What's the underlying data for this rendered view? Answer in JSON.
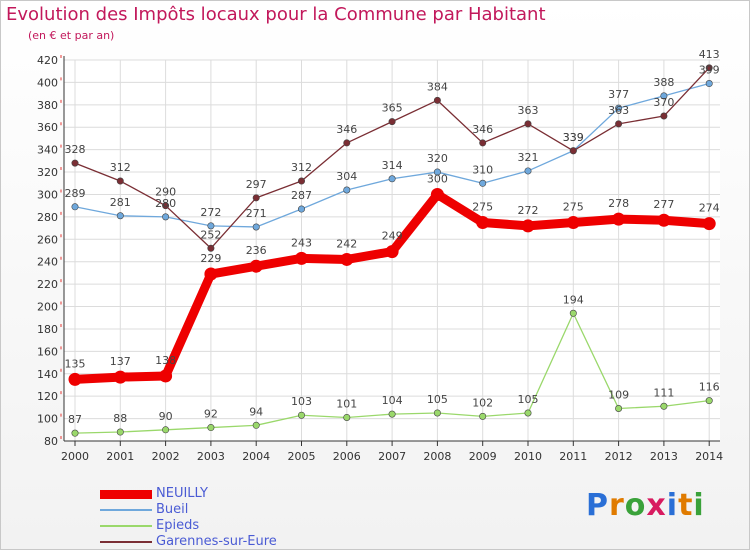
{
  "title": "Evolution des Impôts locaux pour la Commune par Habitant",
  "subtitle": "(en € et par an)",
  "logo": {
    "letters": [
      "P",
      "r",
      "o",
      "x",
      "i",
      "t",
      "i"
    ],
    "colors": [
      "#2a6fd6",
      "#e07b00",
      "#3aa23a",
      "#d81b60",
      "#2a6fd6",
      "#e07b00",
      "#3aa23a"
    ]
  },
  "chart_data": {
    "type": "line",
    "title": "Evolution des Impôts locaux pour la Commune par Habitant",
    "xlabel": "",
    "ylabel": "(en € et par an)",
    "categories": [
      "2000",
      "2001",
      "2002",
      "2003",
      "2004",
      "2005",
      "2006",
      "2007",
      "2008",
      "2009",
      "2010",
      "2011",
      "2012",
      "2013",
      "2014"
    ],
    "ylim": [
      80,
      420
    ],
    "yticks": [
      80,
      100,
      120,
      140,
      160,
      180,
      200,
      220,
      240,
      260,
      280,
      300,
      320,
      340,
      360,
      380,
      400,
      420
    ],
    "grid": true,
    "series": [
      {
        "name": "NEUILLY",
        "color": "#ee0000",
        "values": [
          135,
          137,
          138,
          229,
          236,
          243,
          242,
          249,
          300,
          275,
          272,
          275,
          278,
          277,
          274
        ]
      },
      {
        "name": "Bueil",
        "color": "#6fa8dc",
        "values": [
          289,
          281,
          280,
          272,
          271,
          287,
          304,
          314,
          320,
          310,
          321,
          339,
          377,
          388,
          399
        ]
      },
      {
        "name": "Epieds",
        "color": "#9ad86b",
        "values": [
          87,
          88,
          90,
          92,
          94,
          103,
          101,
          104,
          105,
          102,
          105,
          194,
          109,
          111,
          116
        ]
      },
      {
        "name": "Garennes-sur-Eure",
        "color": "#7a2e34",
        "values": [
          328,
          312,
          290,
          252,
          297,
          312,
          346,
          365,
          384,
          346,
          363,
          339,
          363,
          370,
          413
        ]
      }
    ]
  }
}
